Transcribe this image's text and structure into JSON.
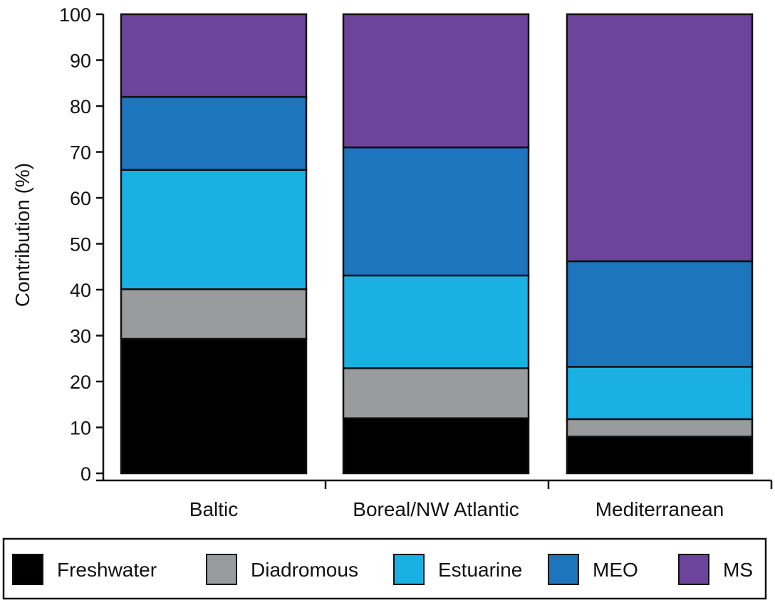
{
  "chart_data": {
    "type": "bar",
    "stacked": true,
    "categories": [
      "Baltic",
      "Boreal/NW Atlantic",
      "Mediterranean"
    ],
    "series": [
      {
        "name": "Freshwater",
        "color": "#000000",
        "values": [
          29.3,
          12.0,
          8.0
        ]
      },
      {
        "name": "Diadromous",
        "color": "#9a9b9d",
        "values": [
          10.8,
          10.9,
          3.8
        ]
      },
      {
        "name": "Estuarine",
        "color": "#1ab0e4",
        "values": [
          26.0,
          20.2,
          11.4
        ]
      },
      {
        "name": "MEO",
        "color": "#1c75bd",
        "values": [
          15.9,
          27.9,
          23.0
        ]
      },
      {
        "name": "MS",
        "color": "#6c449b",
        "values": [
          18.0,
          29.0,
          53.8
        ]
      }
    ],
    "ylabel": "Contribution (%)",
    "ylim": [
      0,
      100
    ],
    "yticks": [
      0,
      10,
      20,
      30,
      40,
      50,
      60,
      70,
      80,
      90,
      100
    ],
    "grid": false,
    "legend_position": "bottom"
  }
}
